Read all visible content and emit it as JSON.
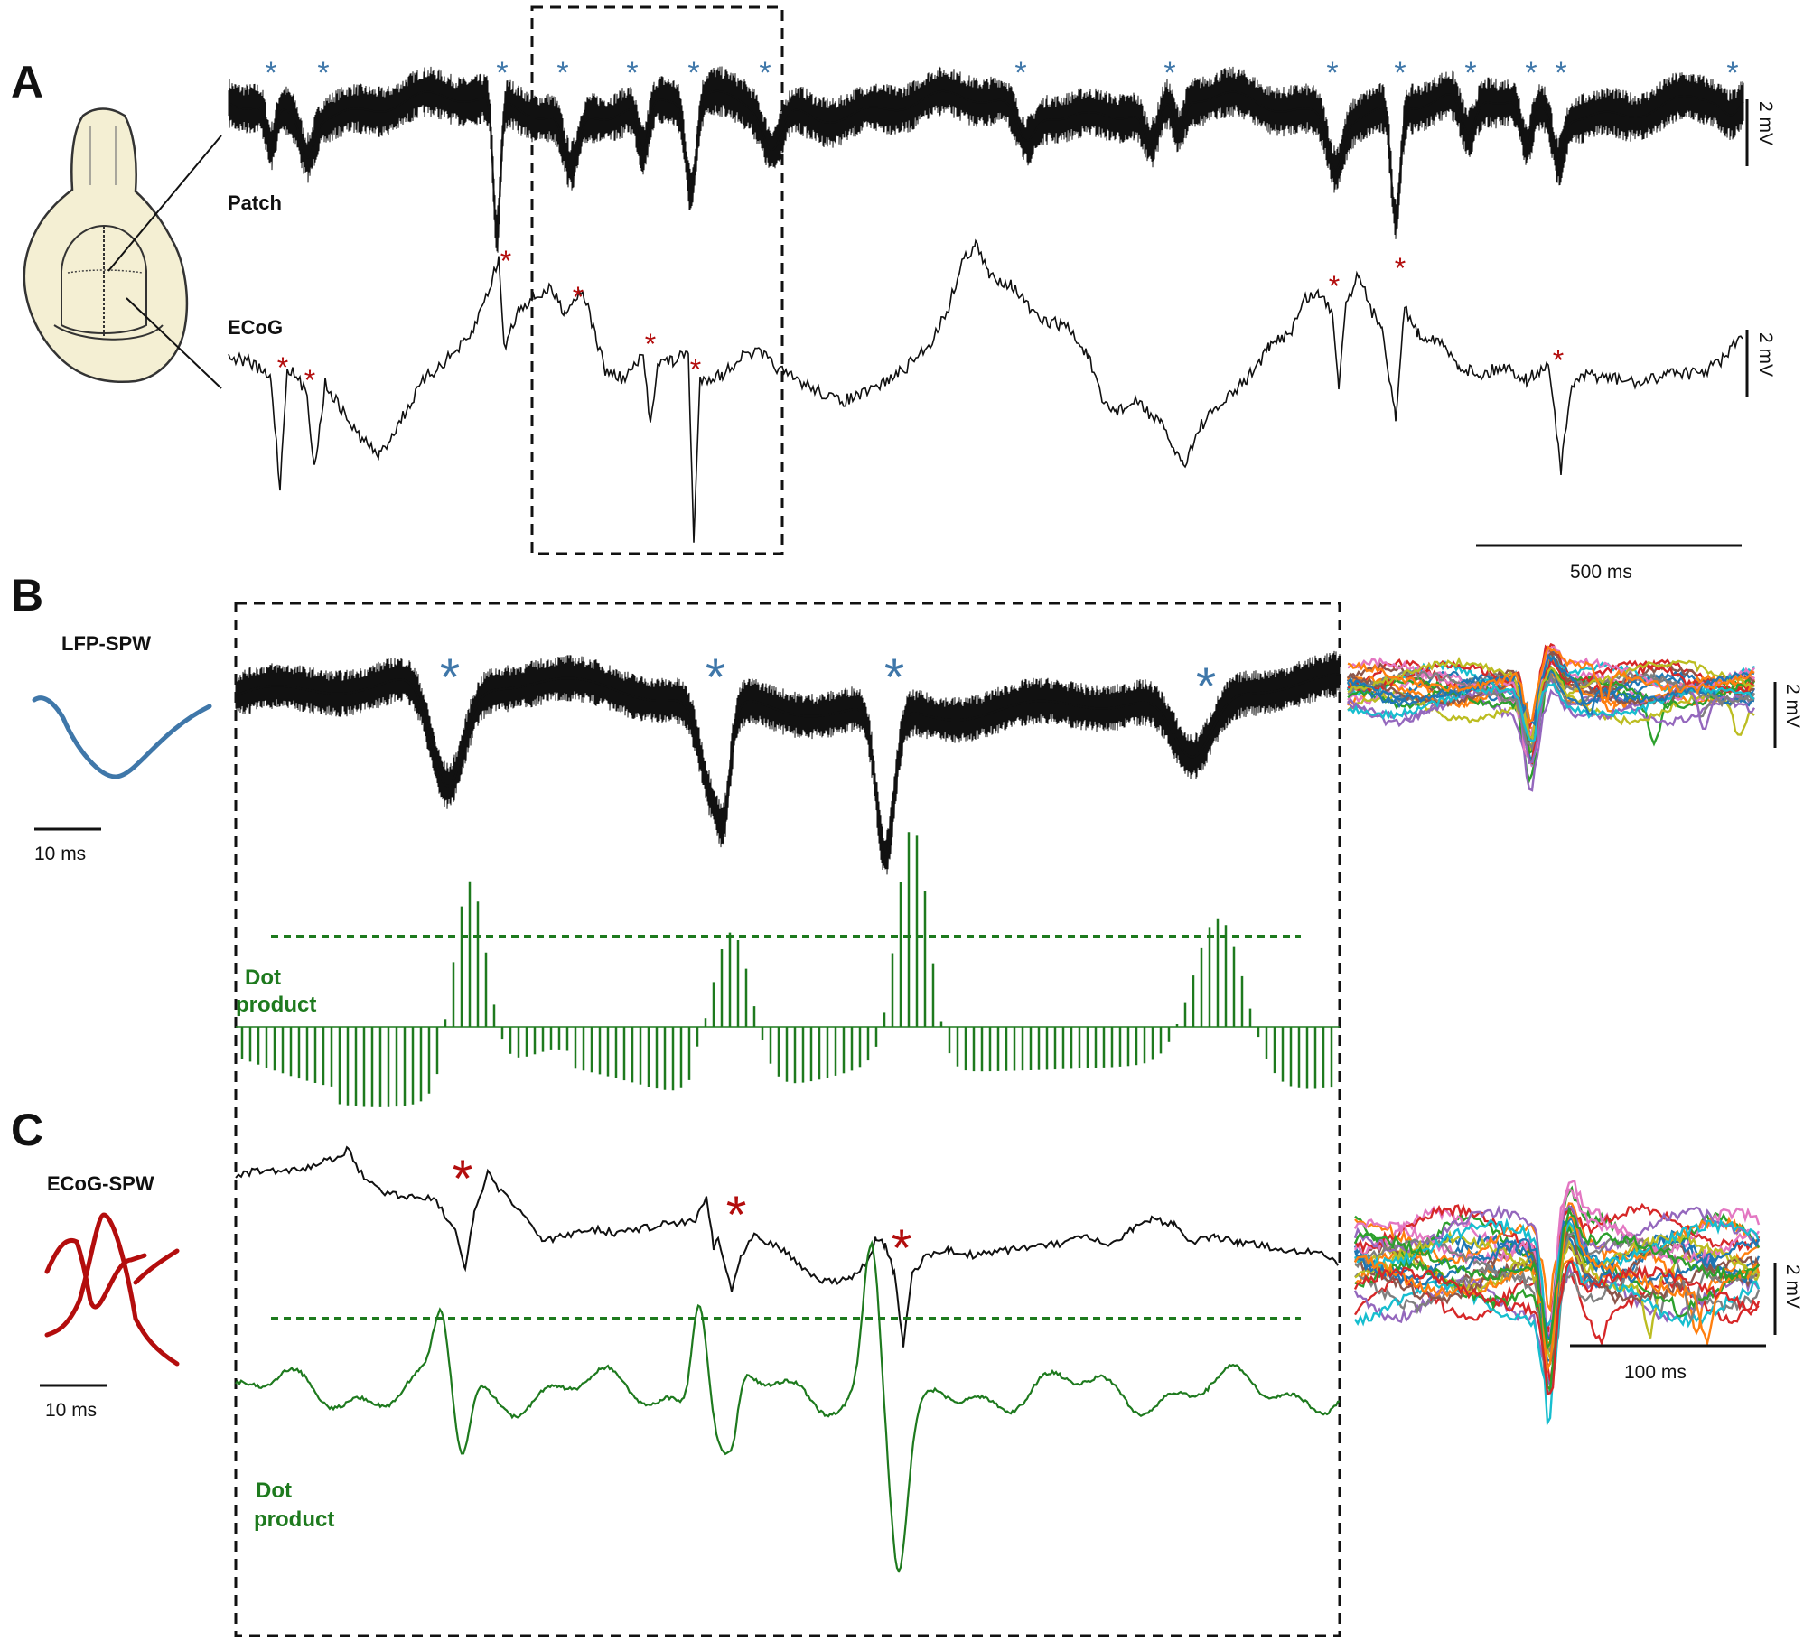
{
  "colors": {
    "trace": "#111111",
    "lfp_marker": "#3f77a9",
    "ecog_marker": "#b30d0d",
    "dot_product": "#1e7a1e",
    "skull_fill": "#f4efd3",
    "skull_stroke": "#333333",
    "overlay_palette": [
      "#1f77b4",
      "#ff7f0e",
      "#2ca02c",
      "#d62728",
      "#9467bd",
      "#8c564b",
      "#e377c2",
      "#7f7f7f",
      "#bcbd22",
      "#17becf"
    ]
  },
  "panels": {
    "A": {
      "label": "A",
      "patch_label": "Patch",
      "ecog_label": "ECoG",
      "voltage_scale_patch": "2 mV",
      "voltage_scale_ecog": "2 mV",
      "time_scale": "500 ms",
      "patch_marker_count": 18,
      "ecog_marker_count": 10
    },
    "B": {
      "label": "B",
      "template_title": "LFP-SPW",
      "template_time_scale": "10 ms",
      "dot_product_label_line1": "Dot",
      "dot_product_label_line2": "product",
      "overlay_voltage_scale": "2 mV",
      "lfp_marker_count": 4
    },
    "C": {
      "label": "C",
      "template_title": "ECoG-SPW",
      "template_time_scale": "10 ms",
      "dot_product_label_line1": "Dot",
      "dot_product_label_line2": "product",
      "overlay_voltage_scale": "2 mV",
      "overlay_time_scale": "100 ms",
      "ecog_marker_count": 3
    }
  },
  "icons": {
    "skull": "rat-skull-diagram",
    "marker_lfp": "asterisk-blue",
    "marker_ecog": "asterisk-red"
  }
}
